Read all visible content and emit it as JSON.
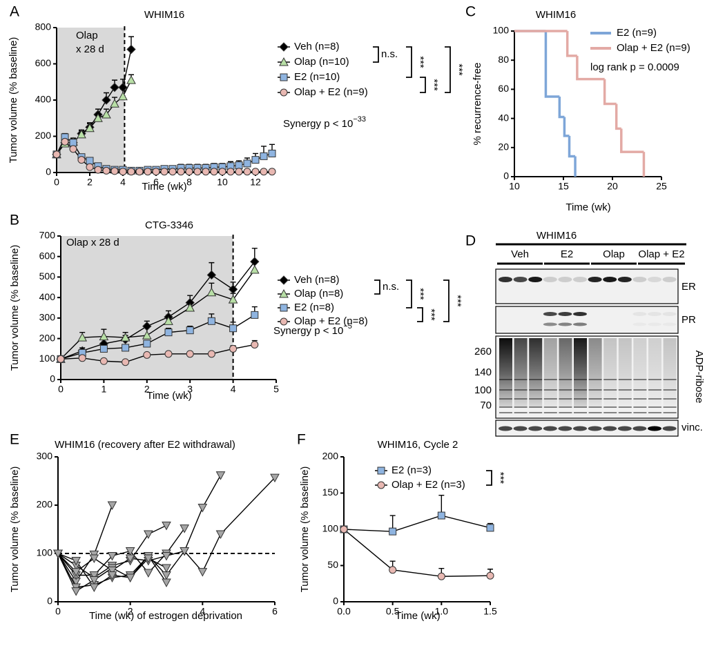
{
  "chart_data": [
    {
      "panel": "A",
      "type": "line",
      "title": "WHIM16",
      "annotation": [
        "Olap",
        "x 28 d"
      ],
      "xlabel": "Time (wk)",
      "ylabel": "Tumor volume (% baseline)",
      "xlim": [
        0,
        13
      ],
      "xticks": [
        0,
        2,
        4,
        6,
        8,
        10,
        12
      ],
      "ylim": [
        0,
        800
      ],
      "yticks": [
        0,
        200,
        400,
        600,
        800
      ],
      "shade": [
        0,
        4.1
      ],
      "vline": 4.1,
      "series": [
        {
          "name": "Veh (n=8)",
          "color": "#000000",
          "marker": "diamond",
          "x": [
            0,
            0.5,
            1,
            1.5,
            2,
            2.5,
            3,
            3.5,
            4,
            4.5
          ],
          "values": [
            100,
            165,
            165,
            215,
            250,
            320,
            400,
            470,
            470,
            680
          ],
          "errors": [
            0,
            20,
            20,
            20,
            25,
            30,
            40,
            40,
            45,
            70
          ]
        },
        {
          "name": "Olap (n=10)",
          "color": "#b8dfa6",
          "marker": "triangle",
          "x": [
            0,
            0.5,
            1,
            1.5,
            2,
            2.5,
            3,
            3.5,
            4,
            4.5
          ],
          "values": [
            100,
            160,
            170,
            210,
            245,
            300,
            320,
            380,
            420,
            510
          ],
          "errors": [
            0,
            20,
            20,
            20,
            25,
            25,
            30,
            35,
            40,
            30
          ]
        },
        {
          "name": "E2 (n=10)",
          "color": "#8fb4e0",
          "marker": "square",
          "x": [
            0,
            0.5,
            1,
            1.5,
            2,
            2.5,
            3,
            3.5,
            4,
            4.5,
            5,
            5.5,
            6,
            6.5,
            7,
            7.5,
            8,
            8.5,
            9,
            9.5,
            10,
            10.5,
            11,
            11.5,
            12,
            12.5,
            13
          ],
          "values": [
            100,
            195,
            165,
            85,
            65,
            35,
            20,
            15,
            15,
            10,
            10,
            15,
            15,
            20,
            20,
            25,
            25,
            25,
            25,
            30,
            30,
            35,
            40,
            50,
            70,
            90,
            105
          ],
          "errors": [
            0,
            20,
            15,
            10,
            10,
            5,
            5,
            5,
            5,
            5,
            5,
            10,
            10,
            15,
            15,
            20,
            20,
            20,
            20,
            20,
            20,
            25,
            25,
            30,
            35,
            55,
            50
          ]
        },
        {
          "name": "Olap + E2 (n=9)",
          "color": "#e8b8b2",
          "marker": "circle",
          "x": [
            0,
            0.5,
            1,
            1.5,
            2,
            2.5,
            3,
            3.5,
            4,
            4.5,
            5,
            5.5,
            6,
            6.5,
            7,
            7.5,
            8,
            8.5,
            9,
            9.5,
            10,
            10.5,
            11,
            11.5,
            12,
            12.5,
            13
          ],
          "values": [
            100,
            170,
            130,
            70,
            30,
            15,
            10,
            8,
            5,
            5,
            5,
            5,
            5,
            5,
            5,
            5,
            5,
            5,
            5,
            5,
            5,
            5,
            5,
            5,
            5,
            5,
            5
          ]
        }
      ],
      "stats": [
        "n.s.",
        "***",
        "***",
        "***"
      ],
      "synergy": "Synergy p < 10",
      "synergy_exponent": "−33"
    },
    {
      "panel": "B",
      "type": "line",
      "title": "CTG-3346",
      "annotation": [
        "Olap x 28 d"
      ],
      "xlabel": "Time (wk)",
      "ylabel": "Tumor volume  (% baseline)",
      "xlim": [
        0,
        5
      ],
      "xticks": [
        0,
        1,
        2,
        3,
        4,
        5
      ],
      "ylim": [
        0,
        700
      ],
      "yticks": [
        0,
        100,
        200,
        300,
        400,
        500,
        600,
        700
      ],
      "shade": [
        0,
        4
      ],
      "vline": 4,
      "series": [
        {
          "name": "Veh (n=8)",
          "color": "#000000",
          "marker": "diamond",
          "x": [
            0,
            0.5,
            1,
            1.5,
            2,
            2.5,
            3,
            3.5,
            4,
            4.5
          ],
          "values": [
            100,
            140,
            175,
            195,
            260,
            305,
            375,
            510,
            440,
            575
          ],
          "errors": [
            0,
            15,
            25,
            20,
            25,
            30,
            35,
            60,
            35,
            65
          ]
        },
        {
          "name": "Olap (n=8)",
          "color": "#b8dfa6",
          "marker": "triangle",
          "x": [
            0,
            0.5,
            1,
            1.5,
            2,
            2.5,
            3,
            3.5,
            4,
            4.5
          ],
          "values": [
            100,
            205,
            210,
            205,
            215,
            285,
            350,
            425,
            390,
            535
          ],
          "errors": [
            0,
            25,
            35,
            25,
            45,
            30,
            20,
            45,
            30,
            40
          ]
        },
        {
          "name": "E2 (n=8)",
          "color": "#8fb4e0",
          "marker": "square",
          "x": [
            0,
            0.5,
            1,
            1.5,
            2,
            2.5,
            3,
            3.5,
            4,
            4.5
          ],
          "values": [
            100,
            130,
            150,
            155,
            175,
            230,
            240,
            285,
            250,
            315
          ],
          "errors": [
            0,
            10,
            15,
            15,
            15,
            20,
            20,
            35,
            30,
            40
          ]
        },
        {
          "name": "Olap + E2 (n=8)",
          "color": "#e8b8b2",
          "marker": "circle",
          "x": [
            0,
            0.5,
            1,
            1.5,
            2,
            2.5,
            3,
            3.5,
            4,
            4.5
          ],
          "values": [
            100,
            105,
            90,
            85,
            120,
            125,
            125,
            125,
            150,
            170
          ],
          "errors": [
            0,
            10,
            10,
            5,
            5,
            5,
            10,
            10,
            15,
            20
          ]
        }
      ],
      "stats": [
        "n.s.",
        "***",
        "***",
        "***"
      ],
      "synergy": "Synergy p < 10",
      "synergy_exponent": "−5"
    },
    {
      "panel": "C",
      "type": "step",
      "title": "WHIM16",
      "xlabel": "Time (wk)",
      "ylabel": "% recurrence-free",
      "xlim": [
        10,
        25
      ],
      "xticks": [
        10,
        15,
        20,
        25
      ],
      "ylim": [
        0,
        100
      ],
      "yticks": [
        0,
        20,
        40,
        60,
        80,
        100
      ],
      "series": [
        {
          "name": "E2 (n=9)",
          "color": "#7ea6d8",
          "x": [
            10,
            13.2,
            14.6,
            15.1,
            15.6,
            16.2
          ],
          "values": [
            100,
            55,
            41,
            28,
            14,
            0
          ]
        },
        {
          "name": "Olap + E2 (n=9)",
          "color": "#e3aaa5",
          "x": [
            10,
            15.4,
            16.4,
            19.2,
            20.4,
            20.9,
            23.2
          ],
          "values": [
            100,
            83,
            67,
            50,
            33,
            17,
            0
          ]
        }
      ],
      "annotation": "log rank p = 0.0009"
    },
    {
      "panel": "D",
      "type": "blot",
      "title": "WHIM16",
      "groups": [
        "Veh",
        "E2",
        "Olap",
        "Olap + E2"
      ],
      "rows": [
        "ER",
        "PR",
        "ADP-ribose",
        "vinc."
      ],
      "markers": [
        "260",
        "140",
        "100",
        "70"
      ]
    },
    {
      "panel": "E",
      "type": "line",
      "title": "WHIM16 (recovery after E2 withdrawal)",
      "xlabel": "Time (wk) of estrogen deprivation",
      "ylabel": "Tumor volume (% baseline)",
      "xlim": [
        0,
        6
      ],
      "xticks": [
        0,
        2,
        4,
        6
      ],
      "ylim": [
        0,
        300
      ],
      "yticks": [
        0,
        100,
        200,
        300
      ],
      "hline": 100,
      "series": [
        {
          "color": "#a6a6a6",
          "marker": "triangle-down",
          "x": [
            0,
            0.5,
            1,
            1.5
          ],
          "values": [
            100,
            42,
            98,
            200
          ]
        },
        {
          "color": "#a6a6a6",
          "marker": "triangle-down",
          "x": [
            0,
            0.5,
            1,
            1.5,
            2,
            2.5,
            3
          ],
          "values": [
            100,
            75,
            50,
            75,
            85,
            140,
            158
          ]
        },
        {
          "color": "#a6a6a6",
          "marker": "triangle-down",
          "x": [
            0,
            0.5,
            1,
            1.5,
            2,
            2.5,
            3,
            3.5,
            4,
            4.5
          ],
          "values": [
            100,
            30,
            35,
            50,
            55,
            95,
            55,
            105,
            195,
            262
          ]
        },
        {
          "color": "#a6a6a6",
          "marker": "triangle-down",
          "x": [
            0,
            0.5,
            1,
            1.5,
            2,
            2.5,
            3,
            3.5
          ],
          "values": [
            100,
            55,
            55,
            95,
            105,
            60,
            100,
            152
          ]
        },
        {
          "color": "#a6a6a6",
          "marker": "triangle-down",
          "x": [
            0,
            0.5,
            1,
            1.5,
            2,
            2.5,
            3
          ],
          "values": [
            100,
            22,
            45,
            70,
            50,
            95,
            40
          ]
        },
        {
          "color": "#a6a6a6",
          "marker": "triangle-down",
          "x": [
            0,
            0.5,
            1,
            1.5,
            2,
            2.5,
            3,
            3.5,
            4,
            4.5,
            6
          ],
          "values": [
            100,
            62,
            90,
            65,
            90,
            85,
            95,
            105,
            62,
            140,
            257
          ]
        },
        {
          "color": "#a6a6a6",
          "marker": "triangle-down",
          "x": [
            0,
            0.5,
            1,
            1.5,
            2,
            2.5,
            3
          ],
          "values": [
            100,
            85,
            30,
            55,
            50,
            90,
            70
          ]
        }
      ]
    },
    {
      "panel": "F",
      "type": "line",
      "title": "WHIM16, Cycle 2",
      "xlabel": "Time (wk)",
      "ylabel": "Tumor volume  (% baseline)",
      "xlim": [
        0,
        1.5
      ],
      "xticks": [
        {
          "value": 0,
          "label": "0.0"
        },
        0.5,
        {
          "value": 1,
          "label": "1.0"
        },
        1.5
      ],
      "ylim": [
        0,
        200
      ],
      "yticks": [
        0,
        50,
        100,
        150,
        200
      ],
      "series": [
        {
          "name": "E2 (n=3)",
          "color": "#8fb4e0",
          "marker": "square",
          "x": [
            0,
            0.5,
            1,
            1.5
          ],
          "values": [
            100,
            97,
            119,
            102
          ],
          "errors": [
            0,
            22,
            28,
            6
          ]
        },
        {
          "name": "Olap + E2 (n=3)",
          "color": "#e8b8b2",
          "marker": "circle",
          "x": [
            0,
            0.5,
            1,
            1.5
          ],
          "values": [
            100,
            44,
            35,
            36
          ],
          "errors": [
            0,
            12,
            11,
            9
          ]
        }
      ],
      "stats": [
        "***"
      ]
    }
  ]
}
